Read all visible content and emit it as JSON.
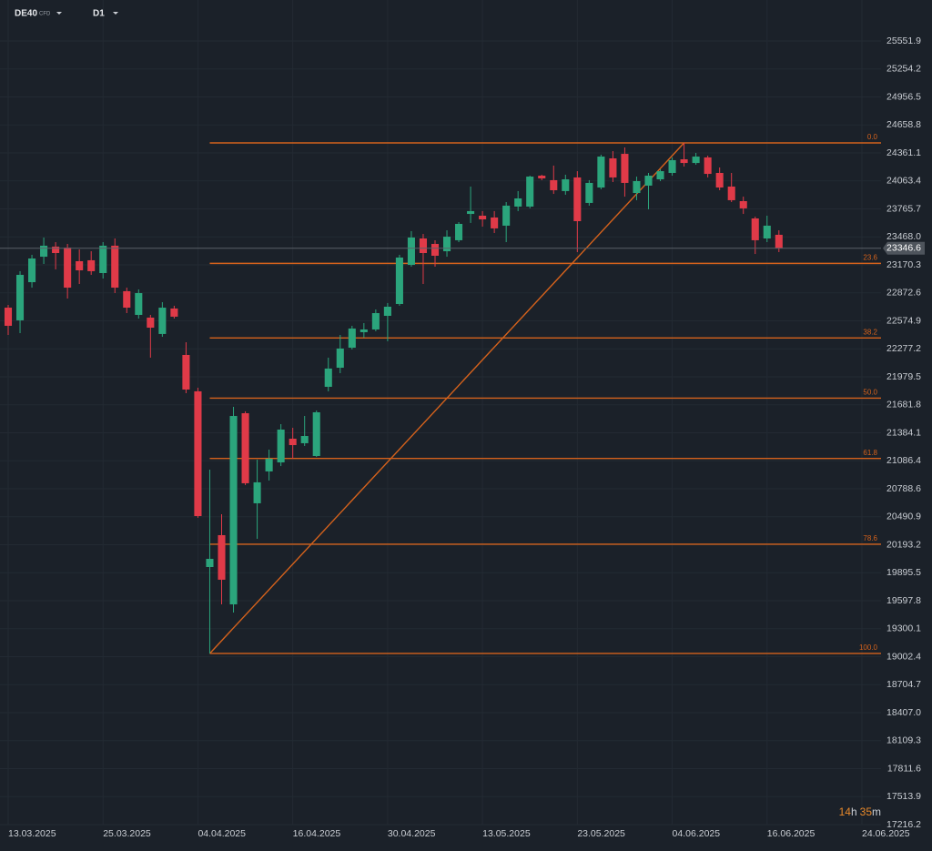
{
  "chart_data": {
    "type": "candlestick",
    "symbol": "DE40",
    "symbol_tag": "CFD",
    "timeframe": "D1",
    "countdown": [
      "14",
      "h",
      "35",
      "m"
    ],
    "up_color": "#2ba57c",
    "down_color": "#e03a48",
    "grid": true,
    "categories": [
      "13.03.2025",
      null,
      null,
      null,
      null,
      null,
      null,
      null,
      "25.03.2025",
      null,
      null,
      null,
      null,
      null,
      null,
      null,
      "04.04.2025",
      null,
      null,
      null,
      null,
      null,
      null,
      null,
      "16.04.2025",
      null,
      null,
      null,
      null,
      null,
      null,
      null,
      "30.04.2025",
      null,
      null,
      null,
      null,
      null,
      null,
      null,
      "13.05.2025",
      null,
      null,
      null,
      null,
      null,
      null,
      null,
      "23.05.2025",
      null,
      null,
      null,
      null,
      null,
      null,
      null,
      "04.06.2025",
      null,
      null,
      null,
      null,
      null,
      null,
      null,
      "16.06.2025",
      null,
      null,
      null,
      null,
      null,
      null,
      null,
      "24.06.2025"
    ],
    "open": [
      22715,
      22580,
      22986,
      23257,
      23364,
      23354,
      23209,
      23219,
      23083,
      23374,
      22890,
      22638,
      22609,
      22435,
      22706,
      22212,
      21825,
      19956,
      20295,
      19559,
      21592,
      20634,
      20973,
      21069,
      21321,
      21273,
      21137,
      21873,
      22076,
      22289,
      22454,
      22483,
      22628,
      22754,
      23170,
      23451,
      23393,
      23315,
      23432,
      23712,
      23693,
      23674,
      23587,
      23790,
      23790,
      24119,
      24071,
      23955,
      24100,
      23829,
      23993,
      24303,
      24351,
      23935,
      24013,
      24080,
      24148,
      24293,
      24254,
      24313,
      24148,
      24003,
      23848,
      23664,
      23451,
      23490,
      null,
      null,
      null,
      null,
      null,
      null,
      null
    ],
    "high": [
      22744,
      23103,
      23277,
      23461,
      23412,
      23393,
      23335,
      23315,
      23412,
      23451,
      22928,
      22909,
      22638,
      22773,
      22735,
      22347,
      21863,
      20992,
      20518,
      21660,
      21612,
      21098,
      21205,
      21476,
      21437,
      21563,
      21621,
      22183,
      22425,
      22522,
      22551,
      22696,
      22764,
      23277,
      23529,
      23499,
      23432,
      23538,
      23625,
      24003,
      23742,
      23742,
      23838,
      23955,
      24119,
      24129,
      24226,
      24129,
      24167,
      24071,
      24342,
      24380,
      24419,
      24109,
      24148,
      24187,
      24313,
      24467.6,
      24361,
      24332,
      24206,
      24148,
      23896,
      23683,
      23693,
      23538,
      null,
      null,
      null,
      null,
      null,
      null,
      null
    ],
    "low": [
      22425,
      22444,
      22928,
      23180,
      23122,
      22812,
      22967,
      23064,
      23025,
      22870,
      22657,
      22599,
      22183,
      22405,
      22599,
      21805,
      20480,
      19036.6,
      19559,
      19472,
      20828,
      20256,
      20876,
      21030,
      21108,
      21244,
      21127,
      21825,
      22018,
      22270,
      22396,
      22464,
      22357,
      22735,
      23151,
      22967,
      23151,
      23257,
      23412,
      23616,
      23577,
      23509,
      23412,
      23742,
      23771,
      24071,
      23925,
      23916,
      23306,
      23800,
      23974,
      24051,
      23896,
      23858,
      23761,
      24061,
      24119,
      24216,
      24235,
      24100,
      23964,
      23838,
      23712,
      23286,
      23412,
      23306,
      null,
      null,
      null,
      null,
      null,
      null,
      null
    ],
    "close": [
      22522,
      23064,
      23238,
      23374,
      23296,
      22928,
      23112,
      23103,
      23374,
      22928,
      22715,
      22870,
      22502,
      22715,
      22619,
      21844,
      20498,
      20043,
      19821,
      21563,
      20847,
      20857,
      21108,
      21418,
      21253,
      21350,
      21602,
      22067,
      22280,
      22493,
      22483,
      22657,
      22725,
      23248,
      23461,
      23296,
      23267,
      23470,
      23606,
      23742,
      23654,
      23558,
      23800,
      23877,
      24109,
      24090,
      23964,
      24080,
      23635,
      24042,
      24322,
      24100,
      24042,
      24061,
      24119,
      24167,
      24284,
      24254,
      24322,
      24138,
      23993,
      23858,
      23771,
      23432,
      23587,
      23346.6,
      null,
      null,
      null,
      null,
      null,
      null,
      null
    ],
    "ylim": [
      17216.2,
      25987.5
    ],
    "yticks": [
      25551.9,
      25254.2,
      24956.5,
      24658.8,
      24361.1,
      24063.4,
      23765.7,
      {
        "value": 23468.0,
        "label": "23468.0"
      },
      23170.3,
      22872.6,
      22574.9,
      22277.2,
      21979.5,
      21681.8,
      21384.1,
      21086.4,
      20788.6,
      20490.9,
      20193.2,
      19895.5,
      19597.8,
      19300.1,
      19002.4,
      18704.7,
      {
        "value": 18407.0,
        "label": "18407.0"
      },
      18109.3,
      17811.6,
      17513.9,
      17216.2
    ],
    "fib": {
      "color": "#d5621c",
      "high": 24467.6,
      "low": 19036.6,
      "levels": [
        {
          "value": 0,
          "label": "0.0"
        },
        23.6,
        38.2,
        {
          "value": 50,
          "label": "50.0"
        },
        61.8,
        78.6,
        {
          "value": 100,
          "label": "100.0"
        }
      ]
    }
  }
}
